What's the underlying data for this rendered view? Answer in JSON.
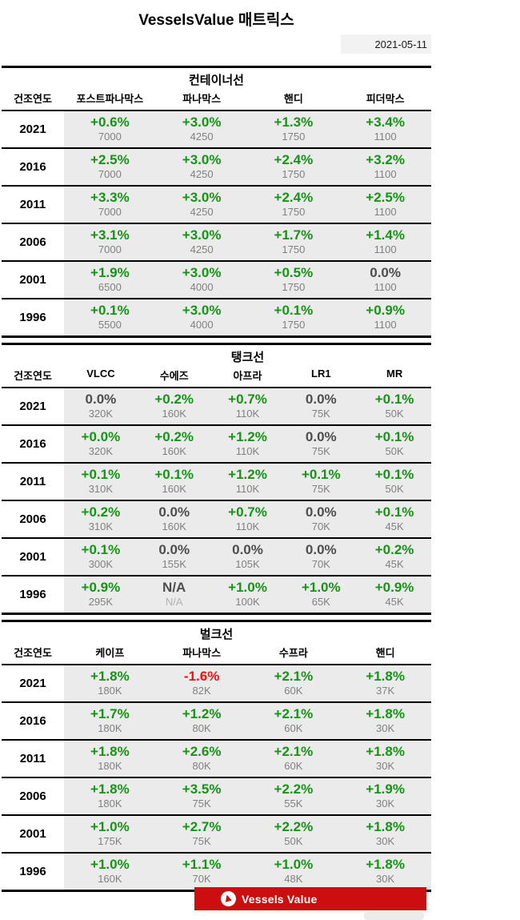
{
  "page": {
    "title": "VesselsValue 매트릭스",
    "date": "2021-05-11"
  },
  "colors": {
    "positive_green": "#169416",
    "negative_red": "#ee1010",
    "neutral_gray": "#4d4d4d",
    "value_gray": "#808080",
    "cell_background": "#ebebeb",
    "banner_red": "#cb0e0e"
  },
  "chart_data": [
    {
      "type": "table",
      "title": "컨테이너선",
      "row_header": "건조연도",
      "columns": [
        "포스트파나막스",
        "파나막스",
        "핸디",
        "피더막스"
      ],
      "rows": [
        {
          "year": "2021",
          "cells": [
            {
              "pct": "+0.6%",
              "value": "7000"
            },
            {
              "pct": "+3.0%",
              "value": "4250"
            },
            {
              "pct": "+1.3%",
              "value": "1750"
            },
            {
              "pct": "+3.4%",
              "value": "1100"
            }
          ]
        },
        {
          "year": "2016",
          "cells": [
            {
              "pct": "+2.5%",
              "value": "7000"
            },
            {
              "pct": "+3.0%",
              "value": "4250"
            },
            {
              "pct": "+2.4%",
              "value": "1750"
            },
            {
              "pct": "+3.2%",
              "value": "1100"
            }
          ]
        },
        {
          "year": "2011",
          "cells": [
            {
              "pct": "+3.3%",
              "value": "7000"
            },
            {
              "pct": "+3.0%",
              "value": "4250"
            },
            {
              "pct": "+2.4%",
              "value": "1750"
            },
            {
              "pct": "+2.5%",
              "value": "1100"
            }
          ]
        },
        {
          "year": "2006",
          "cells": [
            {
              "pct": "+3.1%",
              "value": "7000"
            },
            {
              "pct": "+3.0%",
              "value": "4250"
            },
            {
              "pct": "+1.7%",
              "value": "1750"
            },
            {
              "pct": "+1.4%",
              "value": "1100"
            }
          ]
        },
        {
          "year": "2001",
          "cells": [
            {
              "pct": "+1.9%",
              "value": "6500"
            },
            {
              "pct": "+3.0%",
              "value": "4000"
            },
            {
              "pct": "+0.5%",
              "value": "1750"
            },
            {
              "pct": "0.0%",
              "value": "1100"
            }
          ]
        },
        {
          "year": "1996",
          "cells": [
            {
              "pct": "+0.1%",
              "value": "5500"
            },
            {
              "pct": "+3.0%",
              "value": "4000"
            },
            {
              "pct": "+0.1%",
              "value": "1750"
            },
            {
              "pct": "+0.9%",
              "value": "1100"
            }
          ]
        }
      ]
    },
    {
      "type": "table",
      "title": "탱크선",
      "row_header": "건조연도",
      "columns": [
        "VLCC",
        "수에즈",
        "아프라",
        "LR1",
        "MR"
      ],
      "rows": [
        {
          "year": "2021",
          "cells": [
            {
              "pct": "0.0%",
              "value": "320K"
            },
            {
              "pct": "+0.2%",
              "value": "160K"
            },
            {
              "pct": "+0.7%",
              "value": "110K"
            },
            {
              "pct": "0.0%",
              "value": "75K"
            },
            {
              "pct": "+0.1%",
              "value": "50K"
            }
          ]
        },
        {
          "year": "2016",
          "cells": [
            {
              "pct": "+0.0%",
              "value": "320K"
            },
            {
              "pct": "+0.2%",
              "value": "160K"
            },
            {
              "pct": "+1.2%",
              "value": "110K"
            },
            {
              "pct": "0.0%",
              "value": "75K"
            },
            {
              "pct": "+0.1%",
              "value": "50K"
            }
          ]
        },
        {
          "year": "2011",
          "cells": [
            {
              "pct": "+0.1%",
              "value": "310K"
            },
            {
              "pct": "+0.1%",
              "value": "160K"
            },
            {
              "pct": "+1.2%",
              "value": "110K"
            },
            {
              "pct": "+0.1%",
              "value": "75K"
            },
            {
              "pct": "+0.1%",
              "value": "50K"
            }
          ]
        },
        {
          "year": "2006",
          "cells": [
            {
              "pct": "+0.2%",
              "value": "310K"
            },
            {
              "pct": "0.0%",
              "value": "160K"
            },
            {
              "pct": "+0.7%",
              "value": "110K"
            },
            {
              "pct": "0.0%",
              "value": "70K"
            },
            {
              "pct": "+0.1%",
              "value": "45K"
            }
          ]
        },
        {
          "year": "2001",
          "cells": [
            {
              "pct": "+0.1%",
              "value": "300K"
            },
            {
              "pct": "0.0%",
              "value": "155K"
            },
            {
              "pct": "0.0%",
              "value": "105K"
            },
            {
              "pct": "0.0%",
              "value": "70K"
            },
            {
              "pct": "+0.2%",
              "value": "45K"
            }
          ]
        },
        {
          "year": "1996",
          "cells": [
            {
              "pct": "+0.9%",
              "value": "295K"
            },
            {
              "pct": "N/A",
              "value": "N/A"
            },
            {
              "pct": "+1.0%",
              "value": "100K"
            },
            {
              "pct": "+1.0%",
              "value": "65K"
            },
            {
              "pct": "+0.9%",
              "value": "45K"
            }
          ]
        }
      ]
    },
    {
      "type": "table",
      "title": "벌크선",
      "row_header": "건조연도",
      "columns": [
        "케이프",
        "파나막스",
        "수프라",
        "핸디"
      ],
      "rows": [
        {
          "year": "2021",
          "cells": [
            {
              "pct": "+1.8%",
              "value": "180K"
            },
            {
              "pct": "-1.6%",
              "value": "82K"
            },
            {
              "pct": "+2.1%",
              "value": "60K"
            },
            {
              "pct": "+1.8%",
              "value": "37K"
            }
          ]
        },
        {
          "year": "2016",
          "cells": [
            {
              "pct": "+1.7%",
              "value": "180K"
            },
            {
              "pct": "+1.2%",
              "value": "80K"
            },
            {
              "pct": "+2.1%",
              "value": "60K"
            },
            {
              "pct": "+1.8%",
              "value": "30K"
            }
          ]
        },
        {
          "year": "2011",
          "cells": [
            {
              "pct": "+1.8%",
              "value": "180K"
            },
            {
              "pct": "+2.6%",
              "value": "80K"
            },
            {
              "pct": "+2.1%",
              "value": "60K"
            },
            {
              "pct": "+1.8%",
              "value": "30K"
            }
          ]
        },
        {
          "year": "2006",
          "cells": [
            {
              "pct": "+1.8%",
              "value": "180K"
            },
            {
              "pct": "+3.5%",
              "value": "75K"
            },
            {
              "pct": "+2.2%",
              "value": "55K"
            },
            {
              "pct": "+1.9%",
              "value": "30K"
            }
          ]
        },
        {
          "year": "2001",
          "cells": [
            {
              "pct": "+1.0%",
              "value": "175K"
            },
            {
              "pct": "+2.7%",
              "value": "75K"
            },
            {
              "pct": "+2.2%",
              "value": "50K"
            },
            {
              "pct": "+1.8%",
              "value": "30K"
            }
          ]
        },
        {
          "year": "1996",
          "cells": [
            {
              "pct": "+1.0%",
              "value": "160K"
            },
            {
              "pct": "+1.1%",
              "value": "70K"
            },
            {
              "pct": "+1.0%",
              "value": "48K"
            },
            {
              "pct": "+1.8%",
              "value": "30K"
            }
          ]
        }
      ]
    }
  ],
  "footer": {
    "brand": "Vessels Value",
    "brand_icon": "vesselsvalue-sail-icon"
  }
}
